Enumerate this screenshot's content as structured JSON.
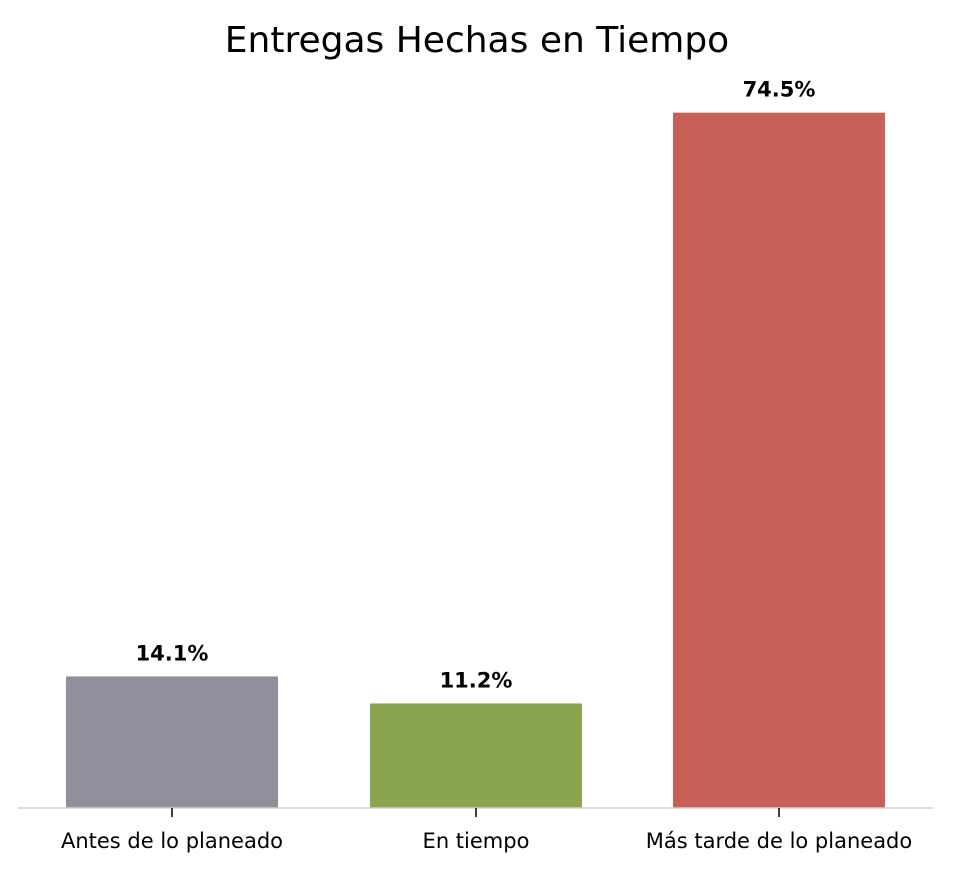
{
  "chart_data": {
    "type": "bar",
    "title": "Entregas Hechas en Tiempo",
    "categories": [
      "Antes de lo planeado",
      "En tiempo",
      "Más tarde de lo planeado"
    ],
    "values": [
      14.1,
      11.2,
      74.5
    ],
    "value_labels": [
      "14.1%",
      "11.2%",
      "74.5%"
    ],
    "colors": [
      "#918f9b",
      "#8aa54d",
      "#c76157"
    ],
    "ylim": [
      0,
      78
    ],
    "unit": "%",
    "grid": false,
    "legend": "none",
    "axis_color": "#d0d0d0"
  }
}
